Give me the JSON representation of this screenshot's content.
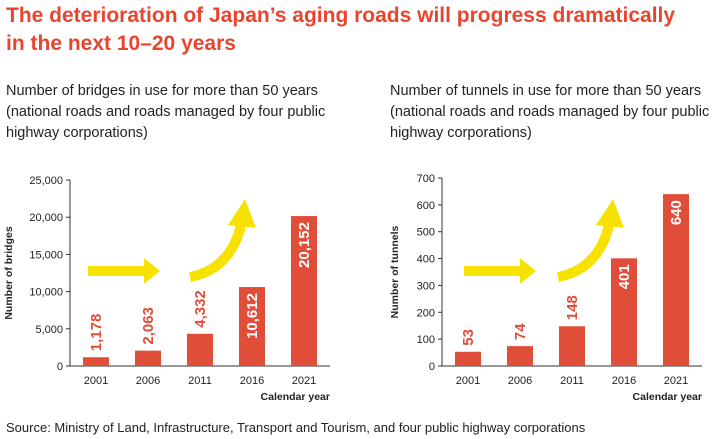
{
  "headline": {
    "line1": "The deterioration of Japan’s aging roads will progress dramatically",
    "line2": "in the next 10–20 years"
  },
  "colors": {
    "bar": "#e04e39",
    "arrow": "#f7e200",
    "headline": "#e8452e",
    "axis": "#333333"
  },
  "chart_data": [
    {
      "type": "bar",
      "title": "Number of bridges in use for more than 50 years (national roads and roads managed by four public highway corporations)",
      "title_lines": [
        "Number of bridges in use for more than 50 years",
        "(national roads and roads managed by four public",
        "highway corporations)"
      ],
      "xlabel": "Calendar year",
      "ylabel": "Number of bridges",
      "categories": [
        "2001",
        "2006",
        "2011",
        "2016",
        "2021"
      ],
      "values": [
        1178,
        2063,
        4332,
        10612,
        20152
      ],
      "data_labels": [
        "1,178",
        "2,063",
        "4,332",
        "10,612",
        "20,152"
      ],
      "ylim": [
        0,
        25000
      ],
      "yticks": [
        0,
        5000,
        10000,
        15000,
        20000,
        25000
      ],
      "ytick_labels": [
        "0",
        "5,000",
        "10,000",
        "15,000",
        "20,000",
        "25,000"
      ],
      "grid": false,
      "legend": "none"
    },
    {
      "type": "bar",
      "title": "Number of tunnels in use for more than 50 years (national roads and roads managed by four public highway corporations)",
      "title_lines": [
        "Number of tunnels in use for more than 50 years",
        "(national roads and roads managed by four public",
        "highway corporations)"
      ],
      "xlabel": "Calendar year",
      "ylabel": "Number of tunnels",
      "categories": [
        "2001",
        "2006",
        "2011",
        "2016",
        "2021"
      ],
      "values": [
        53,
        74,
        148,
        401,
        640
      ],
      "data_labels": [
        "53",
        "74",
        "148",
        "401",
        "640"
      ],
      "ylim": [
        0,
        700
      ],
      "yticks": [
        0,
        100,
        200,
        300,
        400,
        500,
        600,
        700
      ],
      "ytick_labels": [
        "0",
        "100",
        "200",
        "300",
        "400",
        "500",
        "600",
        "700"
      ],
      "grid": false,
      "legend": "none"
    }
  ],
  "source": "Source: Ministry of Land, Infrastructure, Transport and Tourism, and four public highway corporations"
}
